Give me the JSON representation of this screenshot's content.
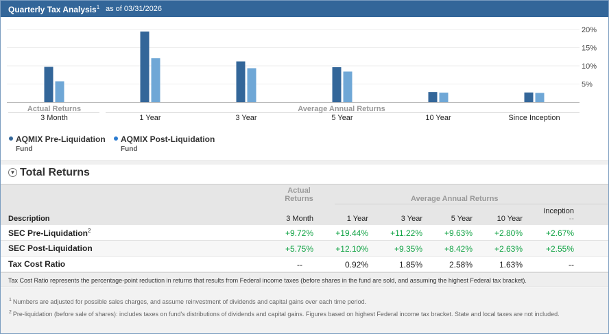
{
  "header": {
    "title": "Quarterly Tax Analysis",
    "title_footnote": "1",
    "as_of": "as of 03/31/2026"
  },
  "colors": {
    "header_bg": "#336699",
    "pre_liquidation": "#336699",
    "post_liquidation": "#6fa7d6",
    "positive_text": "#11a344"
  },
  "chart_data": {
    "type": "bar",
    "categories": [
      "3 Month",
      "1 Year",
      "3 Year",
      "5 Year",
      "10 Year",
      "Since Inception"
    ],
    "series": [
      {
        "name": "AQMIX Pre-Liquidation Fund",
        "values": [
          9.72,
          19.44,
          11.22,
          9.63,
          2.8,
          2.67
        ]
      },
      {
        "name": "AQMIX Post-Liquidation Fund",
        "values": [
          5.75,
          12.1,
          9.35,
          8.42,
          2.63,
          2.55
        ]
      }
    ],
    "yticks": [
      "5%",
      "10%",
      "15%",
      "20%"
    ],
    "ytick_values": [
      5,
      10,
      15,
      20
    ],
    "ylim": [
      0,
      20
    ],
    "group_labels": {
      "actual": "Actual Returns",
      "annual": "Average Annual Returns"
    },
    "grid": true
  },
  "legend": [
    {
      "name": "AQMIX Pre-Liquidation",
      "sub": "Fund"
    },
    {
      "name": "AQMIX Post-Liquidation",
      "sub": "Fund"
    }
  ],
  "section": {
    "title": "Total Returns",
    "toggle_icon": "collapse-circle-icon"
  },
  "table": {
    "actual_returns_label": "Actual Returns",
    "annual_returns_label": "Average Annual Returns",
    "columns": {
      "description": "Description",
      "three_month": "3 Month",
      "one_year": "1 Year",
      "three_year": "3 Year",
      "five_year": "5 Year",
      "ten_year": "10 Year",
      "inception": "Inception",
      "inception_sub": "--"
    },
    "rows": [
      {
        "label": "SEC Pre-Liquidation",
        "footnote": "2",
        "values": [
          "+9.72%",
          "+19.44%",
          "+11.22%",
          "+9.63%",
          "+2.80%",
          "+2.67%"
        ]
      },
      {
        "label": "SEC Post-Liquidation",
        "footnote": "",
        "values": [
          "+5.75%",
          "+12.10%",
          "+9.35%",
          "+8.42%",
          "+2.63%",
          "+2.55%"
        ]
      },
      {
        "label": "Tax Cost Ratio",
        "footnote": "",
        "values": [
          "--",
          "0.92%",
          "1.85%",
          "2.58%",
          "1.63%",
          "--"
        ]
      }
    ]
  },
  "note": "Tax Cost Ratio represents the percentage-point reduction in returns that results from Federal income taxes (before shares in the fund are sold, and assuming the highest Federal tax bracket).",
  "footnotes": [
    {
      "num": "1",
      "text": "Numbers are adjusted for possible sales charges, and assume reinvestment of dividends and capital gains over each time period."
    },
    {
      "num": "2",
      "text": "Pre-liquidation (before sale of shares): includes taxes on fund's distributions of dividends and capital gains. Figures based on highest Federal income tax bracket. State and local taxes are not included."
    }
  ]
}
